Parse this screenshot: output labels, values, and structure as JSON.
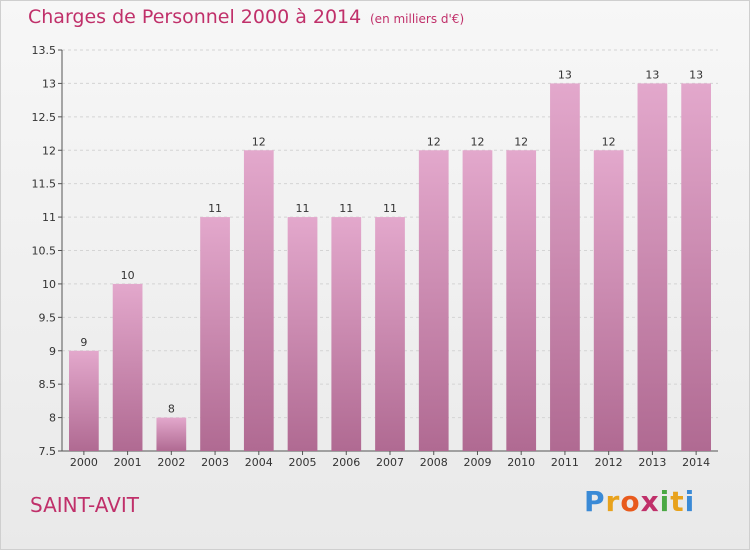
{
  "header": {
    "title": "Charges de Personnel 2000 à 2014",
    "subtitle": "(en milliers d'€)"
  },
  "footer": {
    "commune": "SAINT-AVIT",
    "logo": [
      "P",
      "r",
      "o",
      "x",
      "i",
      "t",
      "i"
    ]
  },
  "colors": {
    "bar_top": "#e3a8cc",
    "bar_bottom": "#b06a92",
    "title": "#c0306a"
  },
  "chart_data": {
    "type": "bar",
    "title": "Charges de Personnel 2000 à 2014",
    "subtitle": "(en milliers d'€)",
    "xlabel": "",
    "ylabel": "",
    "ylim": [
      7.5,
      13.5
    ],
    "yticks": [
      "7.5",
      "8",
      "8.5",
      "9",
      "9.5",
      "10",
      "10.5",
      "11",
      "11.5",
      "12",
      "12.5",
      "13",
      "13.5"
    ],
    "grid": true,
    "categories": [
      "2000",
      "2001",
      "2002",
      "2003",
      "2004",
      "2005",
      "2006",
      "2007",
      "2008",
      "2009",
      "2010",
      "2011",
      "2012",
      "2013",
      "2014"
    ],
    "values": [
      9,
      10,
      8,
      11,
      12,
      11,
      11,
      11,
      12,
      12,
      12,
      13,
      12,
      13,
      13
    ],
    "data_labels": [
      "9",
      "10",
      "8",
      "11",
      "12",
      "11",
      "11",
      "11",
      "12",
      "12",
      "12",
      "13",
      "12",
      "13",
      "13"
    ]
  }
}
